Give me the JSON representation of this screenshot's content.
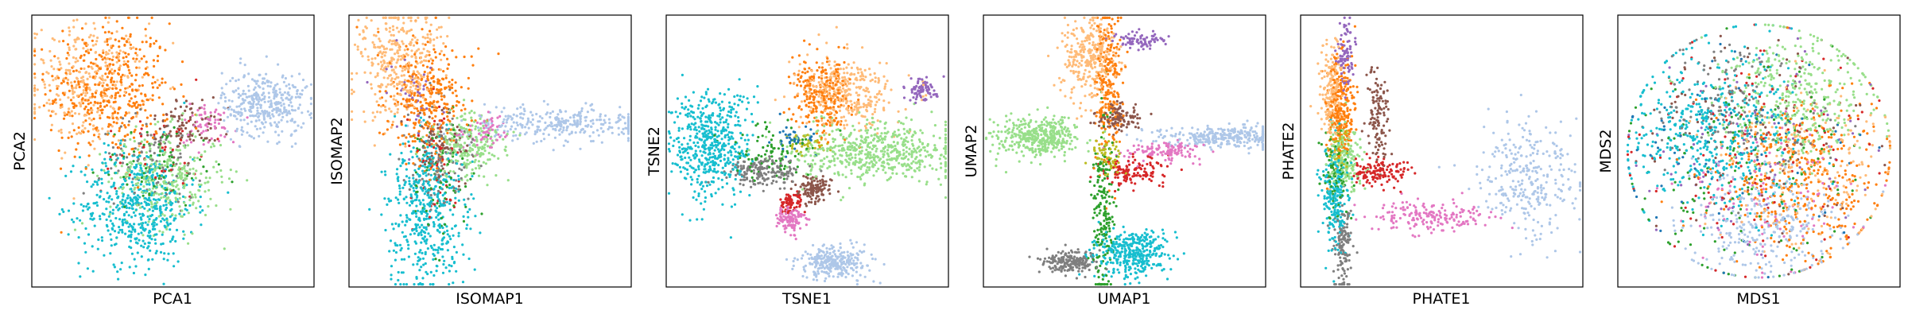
{
  "palette": {
    "blue": "#1f77b4",
    "orange": "#ff7f0e",
    "light_orange": "#ffbb78",
    "light_blue": "#aec7e8",
    "green": "#2ca02c",
    "light_green": "#98df8a",
    "red": "#d62728",
    "pink": "#e377c2",
    "purple": "#9467bd",
    "brown": "#8c564b",
    "gray": "#7f7f7f",
    "olive": "#bcbd22",
    "cyan": "#17becf"
  },
  "chart_data": [
    {
      "type": "scatter",
      "xlabel": "PCA1",
      "ylabel": "PCA2",
      "xticks": [],
      "yticks": [],
      "grid": false,
      "legend": "none",
      "clusters": [
        {
          "color": "orange",
          "cx": -0.45,
          "cy": 0.45,
          "sx": 0.22,
          "sy": 0.25,
          "n": 420
        },
        {
          "color": "light_orange",
          "cx": -0.6,
          "cy": 0.5,
          "sx": 0.2,
          "sy": 0.22,
          "n": 320
        },
        {
          "color": "cyan",
          "cx": -0.25,
          "cy": -0.4,
          "sx": 0.2,
          "sy": 0.22,
          "n": 520
        },
        {
          "color": "light_green",
          "cx": -0.05,
          "cy": -0.2,
          "sx": 0.2,
          "sy": 0.18,
          "n": 320
        },
        {
          "color": "light_blue",
          "cx": 0.65,
          "cy": 0.35,
          "sx": 0.15,
          "sy": 0.12,
          "n": 360
        },
        {
          "color": "brown",
          "cx": 0.1,
          "cy": 0.2,
          "sx": 0.12,
          "sy": 0.1,
          "n": 90
        },
        {
          "color": "pink",
          "cx": 0.25,
          "cy": 0.2,
          "sx": 0.1,
          "sy": 0.08,
          "n": 60
        },
        {
          "color": "gray",
          "cx": -0.15,
          "cy": -0.05,
          "sx": 0.18,
          "sy": 0.15,
          "n": 90
        },
        {
          "color": "green",
          "cx": -0.1,
          "cy": -0.1,
          "sx": 0.2,
          "sy": 0.15,
          "n": 70
        },
        {
          "color": "red",
          "cx": -0.1,
          "cy": 0.0,
          "sx": 0.2,
          "sy": 0.18,
          "n": 50
        }
      ]
    },
    {
      "type": "scatter",
      "xlabel": "ISOMAP1",
      "ylabel": "ISOMAP2",
      "xticks": [],
      "yticks": [],
      "grid": false,
      "legend": "none",
      "clusters": [
        {
          "color": "light_orange",
          "cx": -0.65,
          "cy": 0.65,
          "sx": 0.15,
          "sy": 0.2,
          "n": 360
        },
        {
          "color": "orange",
          "cx": -0.45,
          "cy": 0.4,
          "sx": 0.15,
          "sy": 0.22,
          "n": 320
        },
        {
          "color": "cyan",
          "cx": -0.45,
          "cy": -0.45,
          "sx": 0.13,
          "sy": 0.28,
          "n": 480
        },
        {
          "color": "light_green",
          "cx": -0.15,
          "cy": 0.05,
          "sx": 0.13,
          "sy": 0.12,
          "n": 220
        },
        {
          "color": "light_blue",
          "cx": 0.5,
          "cy": 0.2,
          "sx": 0.35,
          "sy": 0.06,
          "n": 320
        },
        {
          "color": "gray",
          "cx": -0.35,
          "cy": -0.05,
          "sx": 0.12,
          "sy": 0.2,
          "n": 100
        },
        {
          "color": "brown",
          "cx": -0.35,
          "cy": 0.05,
          "sx": 0.1,
          "sy": 0.12,
          "n": 80
        },
        {
          "color": "pink",
          "cx": -0.05,
          "cy": 0.15,
          "sx": 0.1,
          "sy": 0.08,
          "n": 60
        },
        {
          "color": "green",
          "cx": -0.35,
          "cy": -0.15,
          "sx": 0.12,
          "sy": 0.25,
          "n": 80
        },
        {
          "color": "red",
          "cx": -0.4,
          "cy": -0.1,
          "sx": 0.12,
          "sy": 0.25,
          "n": 50
        },
        {
          "color": "purple",
          "cx": -0.55,
          "cy": 0.5,
          "sx": 0.12,
          "sy": 0.2,
          "n": 40
        }
      ]
    },
    {
      "type": "scatter",
      "xlabel": "TSNE1",
      "ylabel": "TSNE2",
      "xticks": [],
      "yticks": [],
      "grid": false,
      "legend": "none",
      "clusters": [
        {
          "color": "cyan",
          "cx": -0.68,
          "cy": 0.05,
          "sx": 0.14,
          "sy": 0.2,
          "n": 520
        },
        {
          "color": "light_orange",
          "cx": 0.28,
          "cy": 0.42,
          "sx": 0.17,
          "sy": 0.13,
          "n": 340
        },
        {
          "color": "orange",
          "cx": 0.1,
          "cy": 0.4,
          "sx": 0.1,
          "sy": 0.13,
          "n": 260
        },
        {
          "color": "light_green",
          "cx": 0.5,
          "cy": 0.0,
          "sx": 0.28,
          "sy": 0.11,
          "n": 580
        },
        {
          "color": "light_blue",
          "cx": 0.2,
          "cy": -0.82,
          "sx": 0.13,
          "sy": 0.06,
          "n": 280
        },
        {
          "color": "gray",
          "cx": -0.3,
          "cy": -0.15,
          "sx": 0.13,
          "sy": 0.05,
          "n": 180
        },
        {
          "color": "brown",
          "cx": 0.05,
          "cy": -0.28,
          "sx": 0.06,
          "sy": 0.05,
          "n": 120
        },
        {
          "color": "pink",
          "cx": -0.12,
          "cy": -0.5,
          "sx": 0.05,
          "sy": 0.05,
          "n": 110
        },
        {
          "color": "red",
          "cx": -0.12,
          "cy": -0.38,
          "sx": 0.04,
          "sy": 0.04,
          "n": 70
        },
        {
          "color": "purple",
          "cx": 0.8,
          "cy": 0.45,
          "sx": 0.06,
          "sy": 0.04,
          "n": 80
        },
        {
          "color": "green",
          "cx": -0.25,
          "cy": -0.02,
          "sx": 0.15,
          "sy": 0.1,
          "n": 90
        },
        {
          "color": "olive",
          "cx": 0.0,
          "cy": 0.05,
          "sx": 0.08,
          "sy": 0.04,
          "n": 40
        },
        {
          "color": "blue",
          "cx": -0.1,
          "cy": 0.08,
          "sx": 0.08,
          "sy": 0.05,
          "n": 40
        }
      ]
    },
    {
      "type": "scatter",
      "xlabel": "UMAP1",
      "ylabel": "UMAP2",
      "xticks": [],
      "yticks": [],
      "grid": false,
      "legend": "none",
      "clusters": [
        {
          "color": "light_orange",
          "cx": -0.25,
          "cy": 0.68,
          "sx": 0.1,
          "sy": 0.15,
          "n": 320
        },
        {
          "color": "orange",
          "cx": -0.12,
          "cy": 0.45,
          "sx": 0.05,
          "sy": 0.3,
          "n": 240
        },
        {
          "color": "light_green",
          "cx": -0.62,
          "cy": 0.1,
          "sx": 0.14,
          "sy": 0.07,
          "n": 420
        },
        {
          "color": "cyan",
          "cx": 0.05,
          "cy": -0.75,
          "sx": 0.14,
          "sy": 0.08,
          "n": 360
        },
        {
          "color": "gray",
          "cx": -0.38,
          "cy": -0.82,
          "sx": 0.1,
          "sy": 0.04,
          "n": 200
        },
        {
          "color": "light_blue",
          "cx": 0.7,
          "cy": 0.1,
          "sx": 0.25,
          "sy": 0.04,
          "n": 300
        },
        {
          "color": "pink",
          "cx": 0.3,
          "cy": 0.0,
          "sx": 0.15,
          "sy": 0.04,
          "n": 120
        },
        {
          "color": "red",
          "cx": 0.05,
          "cy": -0.15,
          "sx": 0.12,
          "sy": 0.06,
          "n": 120
        },
        {
          "color": "green",
          "cx": -0.15,
          "cy": -0.5,
          "sx": 0.04,
          "sy": 0.35,
          "n": 200
        },
        {
          "color": "brown",
          "cx": -0.05,
          "cy": 0.25,
          "sx": 0.07,
          "sy": 0.05,
          "n": 120
        },
        {
          "color": "purple",
          "cx": 0.1,
          "cy": 0.82,
          "sx": 0.1,
          "sy": 0.03,
          "n": 80
        },
        {
          "color": "olive",
          "cx": -0.12,
          "cy": -0.05,
          "sx": 0.06,
          "sy": 0.06,
          "n": 60
        }
      ]
    },
    {
      "type": "scatter",
      "xlabel": "PHATE1",
      "ylabel": "PHATE2",
      "xticks": [],
      "yticks": [],
      "grid": false,
      "legend": "none",
      "clusters": [
        {
          "color": "orange",
          "cx": -0.72,
          "cy": 0.3,
          "sx": 0.05,
          "sy": 0.2,
          "n": 260
        },
        {
          "color": "light_orange",
          "cx": -0.78,
          "cy": 0.4,
          "sx": 0.04,
          "sy": 0.2,
          "n": 200
        },
        {
          "color": "cyan",
          "cx": -0.75,
          "cy": -0.35,
          "sx": 0.05,
          "sy": 0.2,
          "n": 220
        },
        {
          "color": "gray",
          "cx": -0.7,
          "cy": -0.7,
          "sx": 0.03,
          "sy": 0.15,
          "n": 140
        },
        {
          "color": "purple",
          "cx": -0.68,
          "cy": 0.7,
          "sx": 0.03,
          "sy": 0.15,
          "n": 90
        },
        {
          "color": "brown",
          "cx": -0.45,
          "cy": 0.25,
          "sx": 0.04,
          "sy": 0.18,
          "n": 120
        },
        {
          "color": "red",
          "cx": -0.45,
          "cy": -0.15,
          "sx": 0.12,
          "sy": 0.05,
          "n": 140
        },
        {
          "color": "light_green",
          "cx": -0.68,
          "cy": -0.05,
          "sx": 0.06,
          "sy": 0.12,
          "n": 160
        },
        {
          "color": "green",
          "cx": -0.75,
          "cy": -0.2,
          "sx": 0.05,
          "sy": 0.15,
          "n": 80
        },
        {
          "color": "olive",
          "cx": -0.72,
          "cy": 0.0,
          "sx": 0.04,
          "sy": 0.08,
          "n": 50
        },
        {
          "color": "pink",
          "cx": -0.05,
          "cy": -0.48,
          "sx": 0.2,
          "sy": 0.06,
          "n": 180
        },
        {
          "color": "light_blue",
          "cx": 0.62,
          "cy": -0.2,
          "sx": 0.18,
          "sy": 0.2,
          "n": 300
        }
      ]
    },
    {
      "type": "scatter",
      "xlabel": "MDS1",
      "ylabel": "MDS2",
      "xticks": [],
      "yticks": [],
      "grid": false,
      "legend": "none",
      "clusters": [
        {
          "color": "cyan",
          "cx": -0.35,
          "cy": 0.15,
          "sx": 0.3,
          "sy": 0.3,
          "n": 500
        },
        {
          "color": "light_green",
          "cx": 0.25,
          "cy": 0.4,
          "sx": 0.3,
          "sy": 0.25,
          "n": 380
        },
        {
          "color": "orange",
          "cx": 0.3,
          "cy": -0.2,
          "sx": 0.3,
          "sy": 0.3,
          "n": 380
        },
        {
          "color": "light_blue",
          "cx": 0.05,
          "cy": -0.55,
          "sx": 0.3,
          "sy": 0.2,
          "n": 300
        },
        {
          "color": "light_orange",
          "cx": 0.35,
          "cy": -0.1,
          "sx": 0.3,
          "sy": 0.3,
          "n": 220
        },
        {
          "color": "gray",
          "cx": -0.15,
          "cy": 0.35,
          "sx": 0.3,
          "sy": 0.25,
          "n": 150
        },
        {
          "color": "green",
          "cx": -0.1,
          "cy": -0.15,
          "sx": 0.4,
          "sy": 0.4,
          "n": 160
        },
        {
          "color": "red",
          "cx": 0.0,
          "cy": 0.0,
          "sx": 0.42,
          "sy": 0.42,
          "n": 120
        },
        {
          "color": "brown",
          "cx": 0.0,
          "cy": 0.1,
          "sx": 0.42,
          "sy": 0.42,
          "n": 100
        },
        {
          "color": "pink",
          "cx": 0.1,
          "cy": -0.3,
          "sx": 0.4,
          "sy": 0.3,
          "n": 100
        },
        {
          "color": "purple",
          "cx": 0.0,
          "cy": 0.0,
          "sx": 0.42,
          "sy": 0.42,
          "n": 80
        },
        {
          "color": "blue",
          "cx": -0.2,
          "cy": 0.0,
          "sx": 0.4,
          "sy": 0.4,
          "n": 80
        }
      ]
    }
  ]
}
